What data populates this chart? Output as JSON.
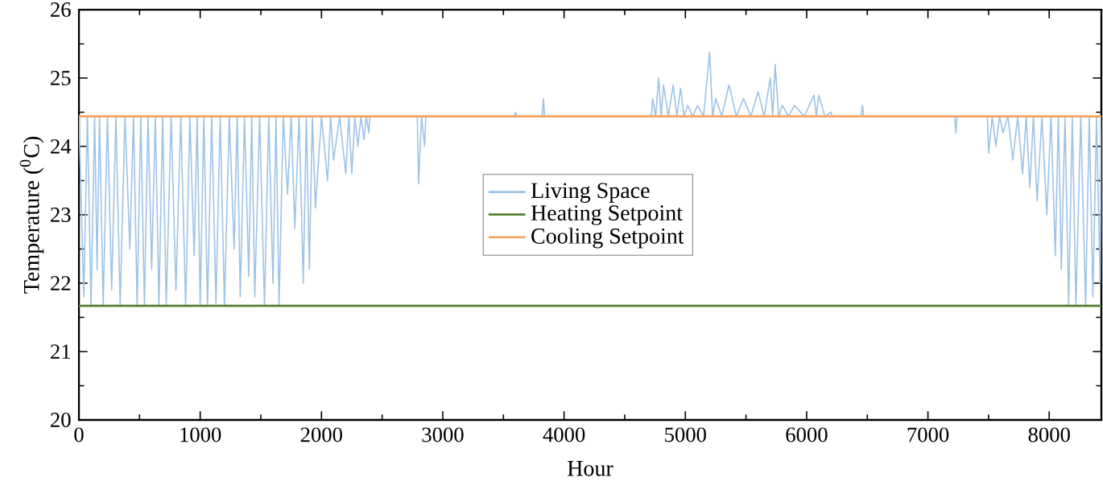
{
  "chart_data": {
    "type": "line",
    "xlabel": "Hour",
    "ylabel": "Temperature ($^{0}$C)",
    "xlim": [
      0,
      8430
    ],
    "ylim": [
      20,
      26
    ],
    "xticks": [
      0,
      1000,
      2000,
      3000,
      4000,
      5000,
      6000,
      7000,
      8000
    ],
    "yticks": [
      20,
      21,
      22,
      23,
      24,
      25,
      26
    ],
    "legend": "center",
    "grid": false,
    "marker": "none",
    "line_style": "solid",
    "series": [
      {
        "name": "Living Space",
        "color": "#9dc3e6",
        "x": [
          0,
          40,
          70,
          100,
          130,
          150,
          170,
          200,
          235,
          270,
          305,
          340,
          380,
          420,
          450,
          480,
          510,
          540,
          570,
          600,
          630,
          660,
          690,
          720,
          760,
          800,
          840,
          880,
          915,
          950,
          975,
          1000,
          1030,
          1060,
          1095,
          1130,
          1165,
          1200,
          1240,
          1280,
          1305,
          1330,
          1365,
          1400,
          1425,
          1450,
          1490,
          1530,
          1565,
          1600,
          1625,
          1650,
          1685,
          1720,
          1750,
          1780,
          1815,
          1850,
          1875,
          1900,
          1925,
          1950,
          2000,
          2050,
          2075,
          2100,
          2150,
          2200,
          2225,
          2250,
          2275,
          2300,
          2325,
          2350,
          2370,
          2390,
          2400,
          2790,
          2800,
          2825,
          2850,
          2860,
          3590,
          3600,
          3610,
          3820,
          3830,
          3840,
          4720,
          4730,
          4755,
          4780,
          4800,
          4820,
          4860,
          4900,
          4930,
          4960,
          4990,
          5020,
          5060,
          5100,
          5150,
          5200,
          5225,
          5250,
          5300,
          5360,
          5420,
          5480,
          5540,
          5600,
          5650,
          5700,
          5720,
          5740,
          5770,
          5800,
          5850,
          5900,
          5980,
          6060,
          6080,
          6100,
          6150,
          6200,
          6210,
          6450,
          6460,
          6470,
          7220,
          7230,
          7240,
          7490,
          7500,
          7530,
          7560,
          7590,
          7620,
          7660,
          7700,
          7740,
          7780,
          7810,
          7840,
          7870,
          7900,
          7940,
          7980,
          8015,
          8050,
          8075,
          8100,
          8130,
          8160,
          8190,
          8220,
          8260,
          8300,
          8330,
          8360,
          8390,
          8420,
          8430
        ],
        "values": [
          24.44,
          21.8,
          24.44,
          21.67,
          24.44,
          22.2,
          24.44,
          21.67,
          24.44,
          21.9,
          24.44,
          21.67,
          24.44,
          22.5,
          24.44,
          21.67,
          24.44,
          21.67,
          24.44,
          22.2,
          24.44,
          21.67,
          24.44,
          21.67,
          24.44,
          21.9,
          24.44,
          21.67,
          24.44,
          22.4,
          24.44,
          21.67,
          24.44,
          21.67,
          24.44,
          21.7,
          24.44,
          21.67,
          24.44,
          22.5,
          24.44,
          21.8,
          24.44,
          22.1,
          24.44,
          21.8,
          24.44,
          21.67,
          24.44,
          22.0,
          24.44,
          21.67,
          24.44,
          23.3,
          24.44,
          22.8,
          24.44,
          22.0,
          24.44,
          22.2,
          24.44,
          23.1,
          24.44,
          23.5,
          24.44,
          23.8,
          24.44,
          23.6,
          24.44,
          23.6,
          24.44,
          24.0,
          24.44,
          24.1,
          24.44,
          24.2,
          24.44,
          24.44,
          23.45,
          24.44,
          24.0,
          24.44,
          24.44,
          24.5,
          24.44,
          24.44,
          24.7,
          24.44,
          24.44,
          24.7,
          24.44,
          25.0,
          24.44,
          24.9,
          24.44,
          24.9,
          24.44,
          24.85,
          24.44,
          24.6,
          24.44,
          24.6,
          24.44,
          25.38,
          24.44,
          24.7,
          24.44,
          24.9,
          24.44,
          24.7,
          24.44,
          24.8,
          24.44,
          25.0,
          24.44,
          25.2,
          24.44,
          24.6,
          24.44,
          24.6,
          24.44,
          24.75,
          24.44,
          24.75,
          24.44,
          24.5,
          24.44,
          24.44,
          24.6,
          24.44,
          24.44,
          24.2,
          24.44,
          24.44,
          23.9,
          24.44,
          24.0,
          24.44,
          24.2,
          24.44,
          23.8,
          24.44,
          23.6,
          24.44,
          23.4,
          24.44,
          23.2,
          24.44,
          23.0,
          24.44,
          22.4,
          24.44,
          22.2,
          24.44,
          21.67,
          24.44,
          21.67,
          24.44,
          21.67,
          24.44,
          21.8,
          24.44,
          22.0,
          24.44
        ]
      },
      {
        "name": "Heating Setpoint",
        "color": "#548235",
        "x": [
          0,
          8430
        ],
        "values": [
          21.67,
          21.67
        ]
      },
      {
        "name": "Cooling Setpoint",
        "color": "#f4a460",
        "x": [
          0,
          8430
        ],
        "values": [
          24.44,
          24.44
        ]
      }
    ]
  }
}
